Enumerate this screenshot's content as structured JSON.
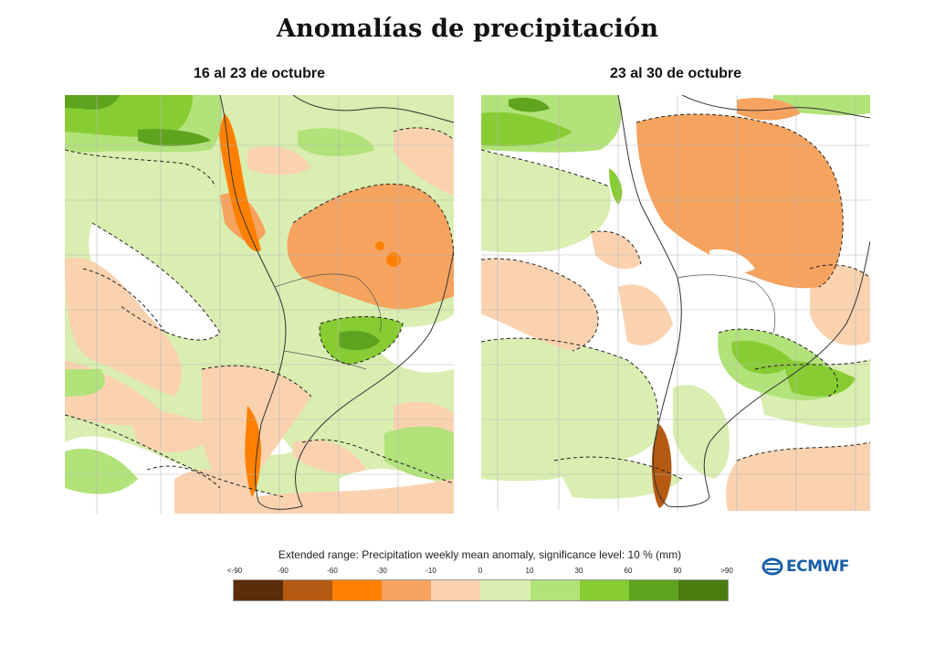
{
  "title": "Anomalías de precipitación",
  "maps": [
    {
      "title": "16 al 23 de octubre"
    },
    {
      "title": "23 al 30 de octubre"
    }
  ],
  "legend": {
    "title": "Extended range: Precipitation weekly mean anomaly, significance level: 10 % (mm)",
    "labels": [
      "<-90",
      "-90",
      "-60",
      "-30",
      "-10",
      "0",
      "10",
      "30",
      "60",
      "90",
      ">90"
    ],
    "colors": [
      "#5c2d08",
      "#b55a12",
      "#ff8000",
      "#f5a35f",
      "#fbd2b0",
      "#ffffff",
      "#d9eeb0",
      "#b2e27a",
      "#88cc33",
      "#5fa31e",
      "#4a7c10"
    ]
  },
  "brand": {
    "name": "ECMWF",
    "color": "#1a5fa8"
  }
}
